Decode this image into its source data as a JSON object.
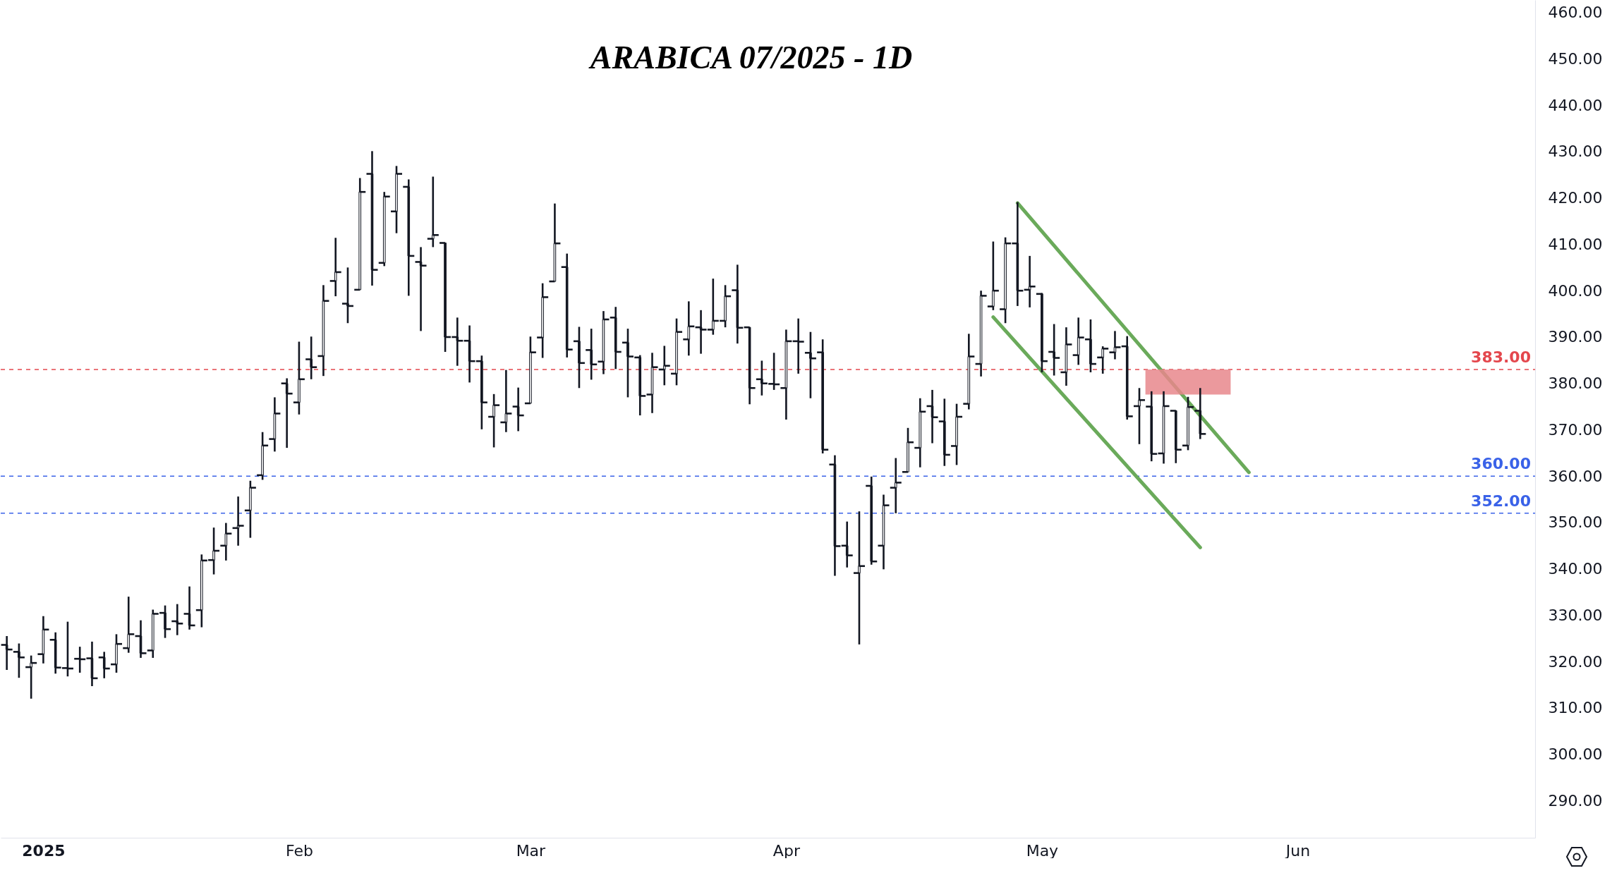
{
  "chart_data": {
    "type": "candlestick",
    "title": "ARABICA 07/2025 - 1D",
    "color": "#131722",
    "categories": [
      null,
      null,
      null,
      "2025",
      null,
      null,
      null,
      null,
      null,
      null,
      null,
      null,
      null,
      null,
      null,
      null,
      null,
      null,
      null,
      null,
      null,
      null,
      null,
      null,
      "Feb",
      null,
      null,
      null,
      null,
      null,
      null,
      null,
      null,
      null,
      null,
      null,
      null,
      null,
      null,
      null,
      null,
      null,
      null,
      "Mar",
      null,
      null,
      null,
      null,
      null,
      null,
      null,
      null,
      null,
      null,
      null,
      null,
      null,
      null,
      null,
      null,
      null,
      null,
      null,
      null,
      "Apr",
      null,
      null,
      null,
      null,
      null,
      null,
      null,
      null,
      null,
      null,
      null,
      null,
      null,
      null,
      null,
      null,
      null,
      null,
      null,
      null,
      "May",
      null,
      null,
      null,
      null,
      null,
      null,
      null,
      null,
      null,
      null,
      null,
      null,
      null,
      null,
      null,
      null,
      null,
      null,
      null,
      null,
      "Jun",
      null,
      null,
      null,
      null,
      null,
      null,
      null,
      null,
      null,
      null,
      null,
      null,
      null,
      null,
      null,
      null,
      null,
      null,
      null
    ],
    "ohlc": [
      [
        323.6,
        325.5,
        318.2,
        322.6
      ],
      [
        322.1,
        323.9,
        316.5,
        320.9
      ],
      [
        318.8,
        321.3,
        312.0,
        319.7
      ],
      [
        321.6,
        329.8,
        319.6,
        326.9
      ],
      [
        324.7,
        326.3,
        317.4,
        318.7
      ],
      [
        318.6,
        328.6,
        316.8,
        318.5
      ],
      [
        320.6,
        323.2,
        317.6,
        320.5
      ],
      [
        320.7,
        324.3,
        314.7,
        316.4
      ],
      [
        320.9,
        322.1,
        316.4,
        318.5
      ],
      [
        319.4,
        325.9,
        317.6,
        323.8
      ],
      [
        322.9,
        334.0,
        321.9,
        325.9
      ],
      [
        325.5,
        328.9,
        320.8,
        321.8
      ],
      [
        322.4,
        331.2,
        320.8,
        330.3
      ],
      [
        330.5,
        332.1,
        325.1,
        327.0
      ],
      [
        328.7,
        332.4,
        325.7,
        328.2
      ],
      [
        330.3,
        336.2,
        326.9,
        327.8
      ],
      [
        331.1,
        343.1,
        327.4,
        341.8
      ],
      [
        341.9,
        348.9,
        338.8,
        343.9
      ],
      [
        345.0,
        349.9,
        341.8,
        347.6
      ],
      [
        348.8,
        355.6,
        345.0,
        349.3
      ],
      [
        352.6,
        359.0,
        346.7,
        357.5
      ],
      [
        360.2,
        369.5,
        359.2,
        366.6
      ],
      [
        368.0,
        377.0,
        365.3,
        373.5
      ],
      [
        380.0,
        381.1,
        366.1,
        377.8
      ],
      [
        375.9,
        389.0,
        373.3,
        380.9
      ],
      [
        385.2,
        390.1,
        380.9,
        383.5
      ],
      [
        385.9,
        401.2,
        381.6,
        397.8
      ],
      [
        402.1,
        411.4,
        398.8,
        404.0
      ],
      [
        397.2,
        405.0,
        393.0,
        396.7
      ],
      [
        400.2,
        424.3,
        400.2,
        421.3
      ],
      [
        425.2,
        430.1,
        401.1,
        404.5
      ],
      [
        406.0,
        421.3,
        405.3,
        420.3
      ],
      [
        417.1,
        426.9,
        412.4,
        425.2
      ],
      [
        422.4,
        424.0,
        398.9,
        407.5
      ],
      [
        406.2,
        409.4,
        391.3,
        405.4
      ],
      [
        411.2,
        424.6,
        409.4,
        412.0
      ],
      [
        410.3,
        410.3,
        386.8,
        390.0
      ],
      [
        390.0,
        394.2,
        383.8,
        389.2
      ],
      [
        389.2,
        392.5,
        380.2,
        384.8
      ],
      [
        384.8,
        386.0,
        370.1,
        375.9
      ],
      [
        372.8,
        377.7,
        366.2,
        375.3
      ],
      [
        371.6,
        382.9,
        369.5,
        373.5
      ],
      [
        375.0,
        379.1,
        369.7,
        373.1
      ],
      [
        375.7,
        390.1,
        375.7,
        386.7
      ],
      [
        389.9,
        401.6,
        385.5,
        398.6
      ],
      [
        402.0,
        418.8,
        402.0,
        410.2
      ],
      [
        405.1,
        408.0,
        385.6,
        387.3
      ],
      [
        389.1,
        392.2,
        379.0,
        384.4
      ],
      [
        387.2,
        391.8,
        380.8,
        384.1
      ],
      [
        384.7,
        395.6,
        382.0,
        393.8
      ],
      [
        394.2,
        396.5,
        383.1,
        386.8
      ],
      [
        388.8,
        391.8,
        377.0,
        385.8
      ],
      [
        385.6,
        386.1,
        373.1,
        377.3
      ],
      [
        377.6,
        386.6,
        373.6,
        383.5
      ],
      [
        383.0,
        388.1,
        379.6,
        383.8
      ],
      [
        382.1,
        394.0,
        379.6,
        391.1
      ],
      [
        389.5,
        397.7,
        386.0,
        392.3
      ],
      [
        392.1,
        395.8,
        386.4,
        391.6
      ],
      [
        391.6,
        402.6,
        390.5,
        393.5
      ],
      [
        393.5,
        401.2,
        392.1,
        398.8
      ],
      [
        400.1,
        405.6,
        388.6,
        392.0
      ],
      [
        392.1,
        392.1,
        375.5,
        379.0
      ],
      [
        380.9,
        384.9,
        377.4,
        380.0
      ],
      [
        379.9,
        386.6,
        378.6,
        379.8
      ],
      [
        379.0,
        391.6,
        372.2,
        389.1
      ],
      [
        389.1,
        394.0,
        382.1,
        389.0
      ],
      [
        386.6,
        391.1,
        376.8,
        385.4
      ],
      [
        386.7,
        389.5,
        364.9,
        365.7
      ],
      [
        362.5,
        364.5,
        338.5,
        344.9
      ],
      [
        345.0,
        350.2,
        340.3,
        342.9
      ],
      [
        339.1,
        352.4,
        323.7,
        340.6
      ],
      [
        357.9,
        359.9,
        340.9,
        341.6
      ],
      [
        345.0,
        356.0,
        339.9,
        353.7
      ],
      [
        357.5,
        363.9,
        352.0,
        358.6
      ],
      [
        360.9,
        370.4,
        360.9,
        367.3
      ],
      [
        366.1,
        376.8,
        361.9,
        373.9
      ],
      [
        375.1,
        378.6,
        367.1,
        372.7
      ],
      [
        371.8,
        376.7,
        362.2,
        364.6
      ],
      [
        366.5,
        375.6,
        362.4,
        372.8
      ],
      [
        375.6,
        390.7,
        374.4,
        385.8
      ],
      [
        384.2,
        400.0,
        381.5,
        398.9
      ],
      [
        396.6,
        410.6,
        395.8,
        400.0
      ],
      [
        396.0,
        411.5,
        393.0,
        410.2
      ],
      [
        410.2,
        419.1,
        396.7,
        400.0
      ],
      [
        400.2,
        407.5,
        396.4,
        400.9
      ],
      [
        399.3,
        399.5,
        382.4,
        384.8
      ],
      [
        386.8,
        392.8,
        381.7,
        385.5
      ],
      [
        382.4,
        392.1,
        379.5,
        388.4
      ],
      [
        386.1,
        394.2,
        384.0,
        389.9
      ],
      [
        389.5,
        393.8,
        382.4,
        384.2
      ],
      [
        385.6,
        388.0,
        382.1,
        387.5
      ],
      [
        386.7,
        391.3,
        385.2,
        387.8
      ],
      [
        388.0,
        390.2,
        372.2,
        372.9
      ],
      [
        375.1,
        379.0,
        366.9,
        376.4
      ],
      [
        375.0,
        378.3,
        363.2,
        364.8
      ],
      [
        364.9,
        378.3,
        362.7,
        375.1
      ],
      [
        374.1,
        374.2,
        362.8,
        365.7
      ],
      [
        366.6,
        377.1,
        365.6,
        374.9
      ],
      [
        374.1,
        379.0,
        368.0,
        369.1
      ],
      null,
      null,
      null,
      null,
      null,
      null,
      null,
      null,
      null,
      null,
      null,
      null,
      null,
      null,
      null,
      null,
      null,
      null,
      null,
      null,
      null,
      null,
      null,
      null,
      null,
      null,
      null
    ],
    "series": [
      {
        "type": "line",
        "color": "#6aaa5a",
        "values": [
          null,
          null,
          null,
          null,
          null,
          null,
          null,
          null,
          null,
          null,
          null,
          null,
          null,
          null,
          null,
          null,
          null,
          null,
          null,
          null,
          null,
          null,
          null,
          null,
          null,
          null,
          null,
          null,
          null,
          null,
          null,
          null,
          null,
          null,
          null,
          null,
          null,
          null,
          null,
          null,
          null,
          null,
          null,
          null,
          null,
          null,
          null,
          null,
          null,
          null,
          null,
          null,
          null,
          null,
          null,
          null,
          null,
          null,
          null,
          null,
          null,
          null,
          null,
          null,
          null,
          null,
          null,
          null,
          null,
          null,
          null,
          null,
          null,
          null,
          null,
          null,
          null,
          null,
          null,
          null,
          null,
          null,
          null,
          418.9,
          null,
          null,
          null,
          null,
          null,
          null,
          null,
          null,
          null,
          null,
          null,
          null,
          null,
          null,
          null,
          null,
          null,
          null,
          360.8,
          null,
          null,
          null,
          null,
          null,
          null,
          null,
          null,
          null,
          null,
          null,
          null,
          null,
          null,
          null,
          null,
          null,
          null,
          null,
          null,
          null,
          null,
          null
        ]
      },
      {
        "type": "line",
        "color": "#6aaa5a",
        "values": [
          null,
          null,
          null,
          null,
          null,
          null,
          null,
          null,
          null,
          null,
          null,
          null,
          null,
          null,
          null,
          null,
          null,
          null,
          null,
          null,
          null,
          null,
          null,
          null,
          null,
          null,
          null,
          null,
          null,
          null,
          null,
          null,
          null,
          null,
          null,
          null,
          null,
          null,
          null,
          null,
          null,
          null,
          null,
          null,
          null,
          null,
          null,
          null,
          null,
          null,
          null,
          null,
          null,
          null,
          null,
          null,
          null,
          null,
          null,
          null,
          null,
          null,
          null,
          null,
          null,
          null,
          null,
          null,
          null,
          null,
          null,
          null,
          null,
          null,
          null,
          null,
          null,
          null,
          null,
          null,
          null,
          394.3,
          null,
          null,
          null,
          null,
          null,
          null,
          null,
          null,
          null,
          null,
          null,
          null,
          null,
          null,
          null,
          null,
          344.6,
          null,
          null,
          null,
          null,
          null,
          null,
          null,
          null,
          null,
          null,
          null,
          null,
          null,
          null,
          null,
          null,
          null,
          null,
          null,
          null,
          null,
          null,
          null,
          null,
          null,
          null,
          null
        ]
      }
    ],
    "bands": [
      {
        "axis": "y",
        "from": 377.6,
        "to": 383,
        "color": "#e8878c"
      }
    ],
    "ylim": [
      282,
      462.7
    ],
    "yticks": [
      {
        "value": 290,
        "label": "290.00"
      },
      {
        "value": 300,
        "label": "300.00"
      },
      {
        "value": 310,
        "label": "310.00"
      },
      {
        "value": 320,
        "label": "320.00"
      },
      {
        "value": 330,
        "label": "330.00"
      },
      {
        "value": 340,
        "label": "340.00"
      },
      {
        "value": 350,
        "label": "350.00"
      },
      {
        "value": 360,
        "label": "360.00"
      },
      {
        "value": 370,
        "label": "370.00"
      },
      {
        "value": 380,
        "label": "380.00"
      },
      {
        "value": 390,
        "label": "390.00"
      },
      {
        "value": 400,
        "label": "400.00"
      },
      {
        "value": 410,
        "label": "410.00"
      },
      {
        "value": 420,
        "label": "420.00"
      },
      {
        "value": 430,
        "label": "430.00"
      },
      {
        "value": 440,
        "label": "440.00"
      },
      {
        "value": 450,
        "label": "450.00"
      },
      {
        "value": 460,
        "label": "460.00"
      }
    ],
    "ref_lines": [
      {
        "axis": "y",
        "value": 383,
        "label": "383.00",
        "color": "#e4474d",
        "line_style": "dashed"
      },
      {
        "axis": "y",
        "value": 360,
        "label": "360.00",
        "color": "#3a62e8",
        "line_style": "dashed"
      },
      {
        "axis": "y",
        "value": 352,
        "label": "352.00",
        "color": "#3a62e8",
        "line_style": "dashed"
      }
    ],
    "grid": false
  }
}
